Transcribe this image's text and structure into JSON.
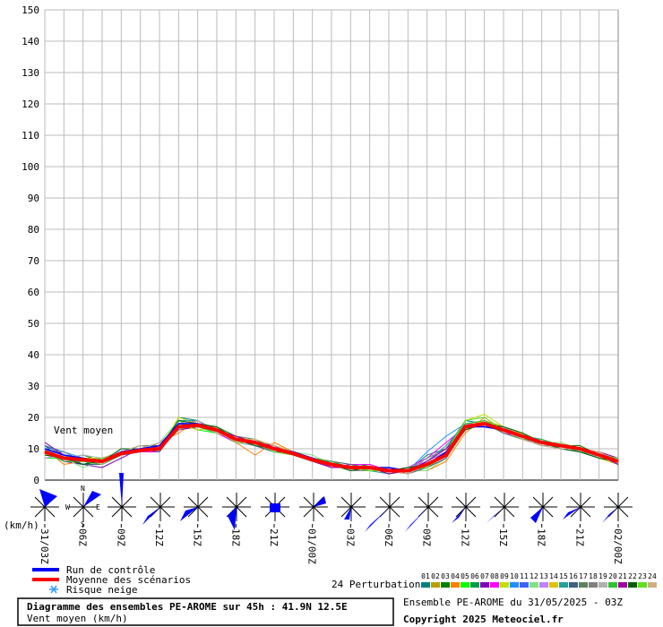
{
  "chart_data": {
    "type": "line",
    "annotation": "Vent moyen",
    "y_unit": "(km/h)",
    "snow_label": "Risque neige",
    "perturbations_label": "24 Perturbations",
    "title": "Diagramme des ensembles PE-AROME sur 45h : 41.9N 12.5E",
    "subtitle": "Vent moyen (km/h)",
    "run_info": "Ensemble PE-AROME du 31/05/2025 - 03Z",
    "copyright": "Copyright 2025 Meteociel.fr",
    "grid": true,
    "xlim": [
      0,
      45
    ],
    "ylim": [
      0,
      150
    ],
    "yticks": [
      0,
      10,
      20,
      30,
      40,
      50,
      60,
      70,
      80,
      90,
      100,
      110,
      120,
      130,
      140,
      150
    ],
    "xticks": [
      {
        "value": 0,
        "label": "31/03Z"
      },
      {
        "value": 3,
        "label": "06Z"
      },
      {
        "value": 6,
        "label": "09Z"
      },
      {
        "value": 9,
        "label": "12Z"
      },
      {
        "value": 12,
        "label": "15Z"
      },
      {
        "value": 15,
        "label": "18Z"
      },
      {
        "value": 18,
        "label": "21Z"
      },
      {
        "value": 21,
        "label": "01/00Z"
      },
      {
        "value": 24,
        "label": "03Z"
      },
      {
        "value": 27,
        "label": "06Z"
      },
      {
        "value": 30,
        "label": "09Z"
      },
      {
        "value": 33,
        "label": "12Z"
      },
      {
        "value": 36,
        "label": "15Z"
      },
      {
        "value": 39,
        "label": "18Z"
      },
      {
        "value": 42,
        "label": "21Z"
      },
      {
        "value": 45,
        "label": "02/00Z"
      }
    ],
    "x": [
      0,
      1.5,
      3,
      4.5,
      6,
      7.5,
      9,
      10.5,
      12,
      13.5,
      15,
      16.5,
      18,
      19.5,
      21,
      22.5,
      24,
      25.5,
      27,
      28.5,
      30,
      31.5,
      33,
      34.5,
      36,
      37.5,
      39,
      40.5,
      42,
      43.5,
      45
    ],
    "series": [
      {
        "name": "Run de contrôle",
        "color": "#0000ff",
        "values": [
          10,
          8,
          7,
          6,
          9,
          10,
          11,
          18,
          18,
          16,
          13,
          12,
          10,
          9,
          7,
          5,
          4,
          4,
          4,
          3,
          5,
          9,
          17,
          17,
          16,
          14,
          12,
          11,
          10,
          8,
          6
        ]
      },
      {
        "name": "Moyenne des scénarios",
        "color": "#ff0000",
        "values": [
          9,
          7,
          6.5,
          6,
          8.5,
          9.5,
          10,
          17,
          17.5,
          16,
          13,
          12,
          10,
          8.5,
          6.5,
          5,
          4,
          4,
          3,
          3,
          5,
          8,
          17,
          18,
          16,
          14,
          12,
          11,
          10,
          8,
          6
        ]
      },
      {
        "name": "01",
        "color": "#008080",
        "values": [
          11,
          6,
          5,
          7,
          9,
          10,
          9,
          20,
          19,
          15,
          12,
          12,
          11,
          8,
          6,
          5,
          3,
          4,
          2,
          3,
          8,
          10,
          19,
          18,
          15,
          13,
          12,
          10,
          9,
          7,
          5
        ]
      },
      {
        "name": "02",
        "color": "#b8a000",
        "values": [
          8,
          8,
          6,
          5,
          8,
          9,
          11,
          16,
          17,
          17,
          14,
          11,
          9,
          9,
          7,
          4,
          5,
          3,
          3,
          4,
          4,
          7,
          16,
          19,
          17,
          15,
          12,
          11,
          10,
          9,
          7
        ]
      },
      {
        "name": "03",
        "color": "#008000",
        "values": [
          9,
          7,
          8,
          6,
          9,
          10,
          10,
          18,
          18,
          16,
          13,
          13,
          10,
          8,
          6,
          6,
          4,
          5,
          3,
          2,
          6,
          9,
          18,
          17,
          16,
          14,
          11,
          11,
          11,
          8,
          6
        ]
      },
      {
        "name": "04",
        "color": "#ff8000",
        "values": [
          10,
          5,
          6,
          7,
          8,
          9,
          12,
          15,
          19,
          16,
          12,
          8,
          12,
          9,
          7,
          5,
          3,
          4,
          4,
          3,
          3,
          6,
          15,
          20,
          16,
          13,
          12,
          12,
          10,
          8,
          6
        ]
      },
      {
        "name": "05",
        "color": "#00ff00",
        "values": [
          7,
          7,
          7,
          5,
          10,
          9,
          10,
          19,
          16,
          15,
          13,
          12,
          11,
          9,
          6,
          5,
          4,
          3,
          3,
          3,
          5,
          9,
          17,
          18,
          17,
          14,
          13,
          11,
          9,
          8,
          5
        ]
      },
      {
        "name": "06",
        "color": "#00a040",
        "values": [
          12,
          8,
          6,
          6,
          9,
          11,
          10,
          17,
          18,
          17,
          14,
          12,
          10,
          8,
          7,
          4,
          4,
          4,
          2,
          3,
          4,
          8,
          18,
          17,
          16,
          15,
          12,
          10,
          10,
          7,
          6
        ]
      },
      {
        "name": "07",
        "color": "#8000c0",
        "values": [
          9,
          6,
          5,
          4,
          7,
          10,
          11,
          16,
          17,
          16,
          13,
          11,
          9,
          8,
          6,
          5,
          3,
          4,
          3,
          2,
          6,
          10,
          16,
          18,
          16,
          13,
          11,
          11,
          10,
          9,
          7
        ]
      },
      {
        "name": "08",
        "color": "#ff00ff",
        "values": [
          10,
          8,
          6,
          6,
          8,
          9,
          9,
          18,
          19,
          15,
          12,
          12,
          10,
          9,
          7,
          4,
          5,
          5,
          3,
          4,
          7,
          12,
          17,
          19,
          15,
          14,
          12,
          10,
          9,
          8,
          5
        ]
      },
      {
        "name": "09",
        "color": "#c0e000",
        "values": [
          8,
          7,
          7,
          7,
          9,
          10,
          10,
          20,
          18,
          16,
          14,
          13,
          11,
          8,
          6,
          5,
          4,
          3,
          2,
          3,
          4,
          8,
          19,
          21,
          17,
          14,
          12,
          11,
          10,
          8,
          6
        ]
      },
      {
        "name": "10",
        "color": "#1e90ff",
        "values": [
          11,
          9,
          7,
          5,
          8,
          9,
          11,
          17,
          17,
          17,
          13,
          12,
          9,
          9,
          6,
          6,
          4,
          4,
          3,
          3,
          9,
          14,
          18,
          17,
          16,
          14,
          13,
          10,
          9,
          7,
          6
        ]
      },
      {
        "name": "11",
        "color": "#4060ff",
        "values": [
          9,
          6,
          6,
          6,
          9,
          11,
          10,
          18,
          18,
          16,
          12,
          11,
          10,
          8,
          7,
          5,
          3,
          4,
          3,
          2,
          5,
          8,
          17,
          18,
          17,
          13,
          12,
          11,
          10,
          9,
          6
        ]
      },
      {
        "name": "12",
        "color": "#80e080",
        "values": [
          10,
          7,
          4,
          6,
          8,
          10,
          12,
          19,
          17,
          15,
          13,
          12,
          11,
          9,
          8,
          5,
          4,
          3,
          4,
          3,
          3,
          7,
          16,
          18,
          16,
          14,
          12,
          12,
          10,
          8,
          7
        ]
      },
      {
        "name": "13",
        "color": "#c080ff",
        "values": [
          7,
          8,
          6,
          5,
          10,
          9,
          10,
          16,
          18,
          16,
          14,
          12,
          10,
          8,
          6,
          5,
          4,
          4,
          3,
          4,
          6,
          9,
          18,
          17,
          16,
          14,
          11,
          10,
          9,
          8,
          5
        ]
      },
      {
        "name": "14",
        "color": "#e0c000",
        "values": [
          9,
          7,
          7,
          6,
          9,
          10,
          11,
          18,
          16,
          17,
          13,
          12,
          11,
          9,
          7,
          5,
          3,
          4,
          3,
          3,
          5,
          8,
          17,
          19,
          16,
          15,
          12,
          11,
          10,
          7,
          5
        ]
      },
      {
        "name": "15",
        "color": "#20a0a0",
        "values": [
          10,
          6,
          6,
          7,
          8,
          9,
          10,
          19,
          19,
          16,
          12,
          12,
          10,
          8,
          6,
          4,
          4,
          3,
          2,
          3,
          6,
          11,
          18,
          18,
          16,
          14,
          13,
          11,
          9,
          8,
          6
        ]
      },
      {
        "name": "16",
        "color": "#406080",
        "values": [
          11,
          8,
          5,
          5,
          9,
          10,
          9,
          17,
          18,
          15,
          13,
          11,
          9,
          9,
          7,
          6,
          5,
          4,
          3,
          2,
          4,
          7,
          17,
          17,
          17,
          14,
          12,
          10,
          10,
          8,
          7
        ]
      },
      {
        "name": "17",
        "color": "#608060",
        "values": [
          8,
          7,
          7,
          6,
          9,
          11,
          11,
          18,
          17,
          16,
          14,
          13,
          10,
          8,
          6,
          5,
          4,
          4,
          3,
          4,
          5,
          9,
          16,
          18,
          15,
          13,
          12,
          11,
          10,
          9,
          6
        ]
      },
      {
        "name": "18",
        "color": "#808080",
        "values": [
          9,
          9,
          6,
          6,
          8,
          9,
          10,
          16,
          18,
          17,
          13,
          12,
          11,
          9,
          7,
          5,
          3,
          3,
          3,
          3,
          7,
          10,
          18,
          18,
          16,
          14,
          11,
          11,
          9,
          8,
          5
        ]
      },
      {
        "name": "19",
        "color": "#b0b0b0",
        "values": [
          10,
          7,
          8,
          7,
          9,
          10,
          12,
          17,
          19,
          16,
          12,
          11,
          10,
          8,
          6,
          5,
          4,
          4,
          3,
          2,
          5,
          8,
          17,
          17,
          17,
          14,
          12,
          10,
          10,
          7,
          6
        ]
      },
      {
        "name": "20",
        "color": "#30c030",
        "values": [
          9,
          6,
          6,
          5,
          8,
          10,
          10,
          18,
          17,
          15,
          13,
          12,
          10,
          9,
          7,
          6,
          4,
          3,
          3,
          3,
          4,
          9,
          18,
          19,
          16,
          13,
          13,
          11,
          9,
          8,
          6
        ]
      },
      {
        "name": "21",
        "color": "#a000a0",
        "values": [
          12,
          8,
          7,
          6,
          9,
          9,
          11,
          17,
          18,
          16,
          14,
          12,
          11,
          8,
          6,
          4,
          4,
          4,
          2,
          3,
          6,
          10,
          17,
          18,
          16,
          14,
          12,
          11,
          10,
          8,
          5
        ]
      },
      {
        "name": "22",
        "color": "#006000",
        "values": [
          8,
          7,
          5,
          6,
          10,
          10,
          10,
          19,
          18,
          17,
          13,
          11,
          10,
          9,
          7,
          5,
          3,
          4,
          3,
          4,
          5,
          8,
          16,
          18,
          17,
          15,
          12,
          10,
          9,
          7,
          6
        ]
      },
      {
        "name": "23",
        "color": "#60e020",
        "values": [
          10,
          8,
          6,
          7,
          8,
          10,
          11,
          18,
          17,
          16,
          12,
          12,
          9,
          8,
          6,
          5,
          4,
          3,
          3,
          3,
          4,
          9,
          19,
          20,
          16,
          14,
          12,
          11,
          10,
          8,
          7
        ]
      },
      {
        "name": "24",
        "color": "#d0b080",
        "values": [
          9,
          7,
          7,
          5,
          9,
          11,
          10,
          17,
          18,
          15,
          13,
          13,
          11,
          9,
          7,
          5,
          4,
          4,
          3,
          2,
          5,
          9,
          17,
          17,
          16,
          13,
          11,
          10,
          10,
          9,
          6
        ]
      }
    ]
  }
}
